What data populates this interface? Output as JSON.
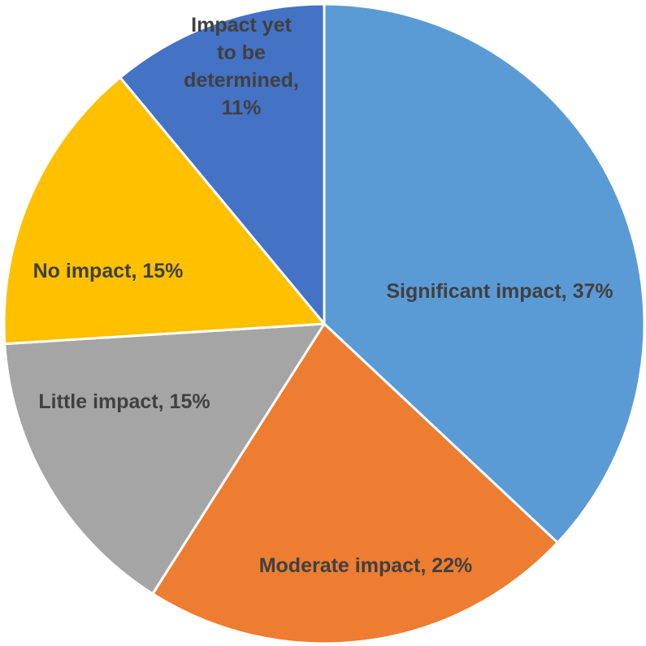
{
  "chart_data": {
    "type": "pie",
    "title": "",
    "start_angle_deg": 0,
    "direction": "clockwise",
    "slices": [
      {
        "label": "Significant impact",
        "value": 37,
        "display": [
          "Significant impact, 37%"
        ],
        "color": "#5B9BD5"
      },
      {
        "label": "Moderate impact",
        "value": 22,
        "display": [
          "Moderate impact, 22%"
        ],
        "color": "#ED7D31"
      },
      {
        "label": "Little impact",
        "value": 15,
        "display": [
          "Little impact, 15%"
        ],
        "color": "#A5A5A5"
      },
      {
        "label": "No impact",
        "value": 15,
        "display": [
          "No impact, 15%"
        ],
        "color": "#FFC000"
      },
      {
        "label": "Impact yet to be determined",
        "value": 11,
        "display": [
          "Impact yet",
          "to be",
          "determined,",
          "11%"
        ],
        "color": "#4472C4"
      }
    ],
    "label_color": "#404040",
    "legend": "none"
  }
}
